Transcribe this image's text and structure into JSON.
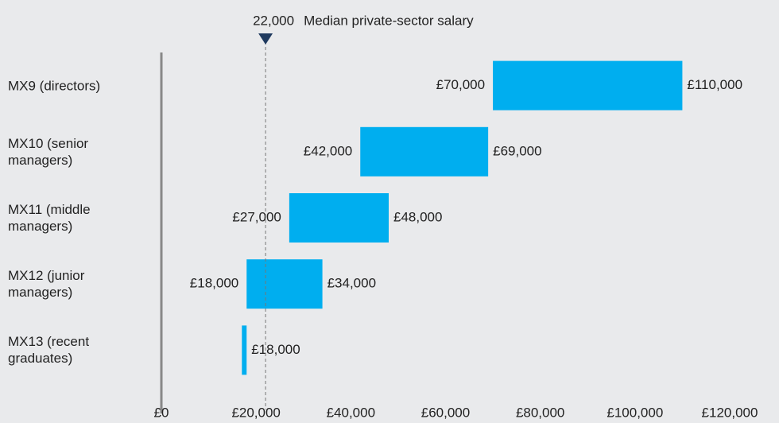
{
  "chart_data": {
    "type": "range_bar",
    "categories": [
      "MX9 (directors)",
      "MX10 (senior managers)",
      "MX11 (middle managers)",
      "MX12 (junior managers)",
      "MX13 (recent graduates)"
    ],
    "low": [
      70000,
      42000,
      27000,
      18000,
      17000
    ],
    "high": [
      110000,
      69000,
      48000,
      34000,
      18000
    ],
    "low_labels": [
      "£70,000",
      "£42,000",
      "£27,000",
      "£18,000",
      null
    ],
    "high_labels": [
      "£110,000",
      "£69,000",
      "£48,000",
      "£34,000",
      "£18,000"
    ],
    "color": "#00aeef",
    "xlim": [
      0,
      120000
    ],
    "xticks": [
      {
        "value": 0,
        "label": "£0"
      },
      {
        "value": 20000,
        "label": "£20,000"
      },
      {
        "value": 40000,
        "label": "£40,000"
      },
      {
        "value": 60000,
        "label": "£60,000"
      },
      {
        "value": 80000,
        "label": "£80,000"
      },
      {
        "value": 100000,
        "label": "£100,000"
      },
      {
        "value": 120000,
        "label": "£120,000"
      }
    ],
    "reference_line": {
      "value": 22000,
      "label": "22,000",
      "annotation": "Median private-sector salary"
    }
  }
}
